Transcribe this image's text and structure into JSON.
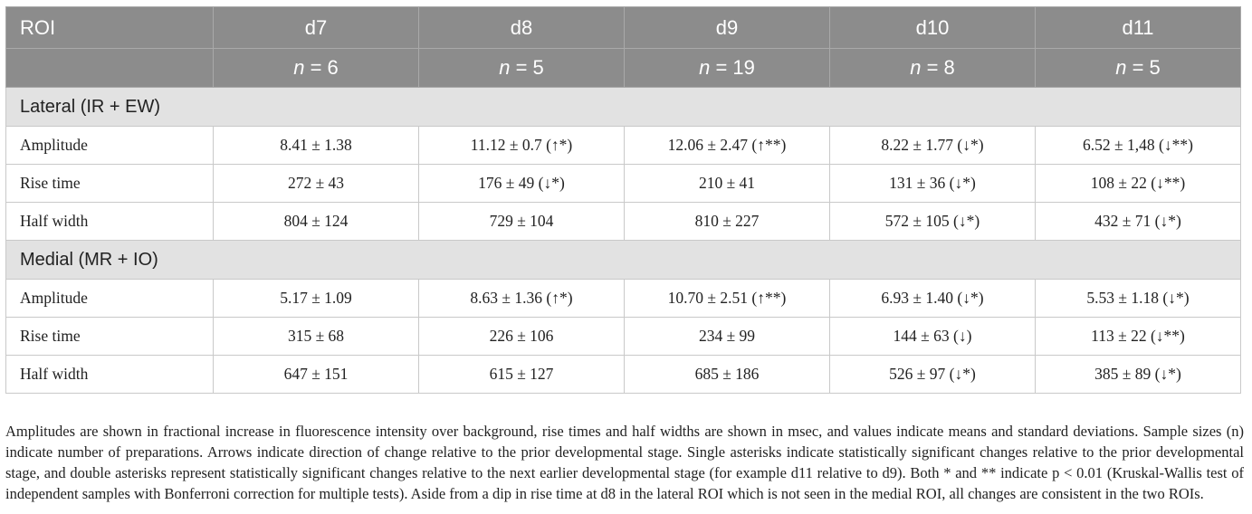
{
  "table": {
    "header": {
      "roi_label": "ROI",
      "stages": [
        {
          "label": "d7",
          "n_value": "6"
        },
        {
          "label": "d8",
          "n_value": "5"
        },
        {
          "label": "d9",
          "n_value": "19"
        },
        {
          "label": "d10",
          "n_value": "8"
        },
        {
          "label": "d11",
          "n_value": "5"
        }
      ],
      "n_symbol": "n",
      "n_equals": " = "
    },
    "sections": [
      {
        "title": "Lateral (IR + EW)",
        "rows": [
          {
            "label": "Amplitude",
            "cells": [
              "8.41 ± 1.38",
              "11.12 ± 0.7 (↑*)",
              "12.06 ± 2.47 (↑**)",
              "8.22 ± 1.77 (↓*)",
              "6.52 ± 1,48 (↓**)"
            ]
          },
          {
            "label": "Rise time",
            "cells": [
              "272 ± 43",
              "176 ± 49 (↓*)",
              "210 ± 41",
              "131 ± 36 (↓*)",
              "108 ± 22 (↓**)"
            ]
          },
          {
            "label": "Half width",
            "cells": [
              "804 ± 124",
              "729 ± 104",
              "810 ± 227",
              "572 ± 105 (↓*)",
              "432 ± 71 (↓*)"
            ]
          }
        ]
      },
      {
        "title": "Medial (MR + IO)",
        "rows": [
          {
            "label": "Amplitude",
            "cells": [
              "5.17 ± 1.09",
              "8.63 ± 1.36 (↑*)",
              "10.70 ± 2.51 (↑**)",
              "6.93 ± 1.40 (↓*)",
              "5.53 ± 1.18 (↓*)"
            ]
          },
          {
            "label": "Rise time",
            "cells": [
              "315 ± 68",
              "226 ± 106",
              "234 ± 99",
              "144 ± 63 (↓)",
              "113 ± 22 (↓**)"
            ]
          },
          {
            "label": "Half width",
            "cells": [
              "647 ± 151",
              "615 ± 127",
              "685 ± 186",
              "526 ± 97 (↓*)",
              "385 ± 89 (↓*)"
            ]
          }
        ]
      }
    ]
  },
  "footnote": "Amplitudes are shown in fractional increase in fluorescence intensity over background, rise times and half widths are shown in msec, and values indicate means and standard deviations. Sample sizes (n) indicate number of preparations. Arrows indicate direction of change relative to the prior developmental stage. Single asterisks indicate statistically significant changes relative to the prior developmental stage, and double asterisks represent statistically significant changes relative to the next earlier developmental stage (for example d11 relative to d9). Both * and ** indicate p < 0.01 (Kruskal-Wallis test of independent samples with Bonferroni correction for multiple tests). Aside from a dip in rise time at d8 in the lateral ROI which is not seen in the medial ROI, all changes are consistent in the two ROIs."
}
